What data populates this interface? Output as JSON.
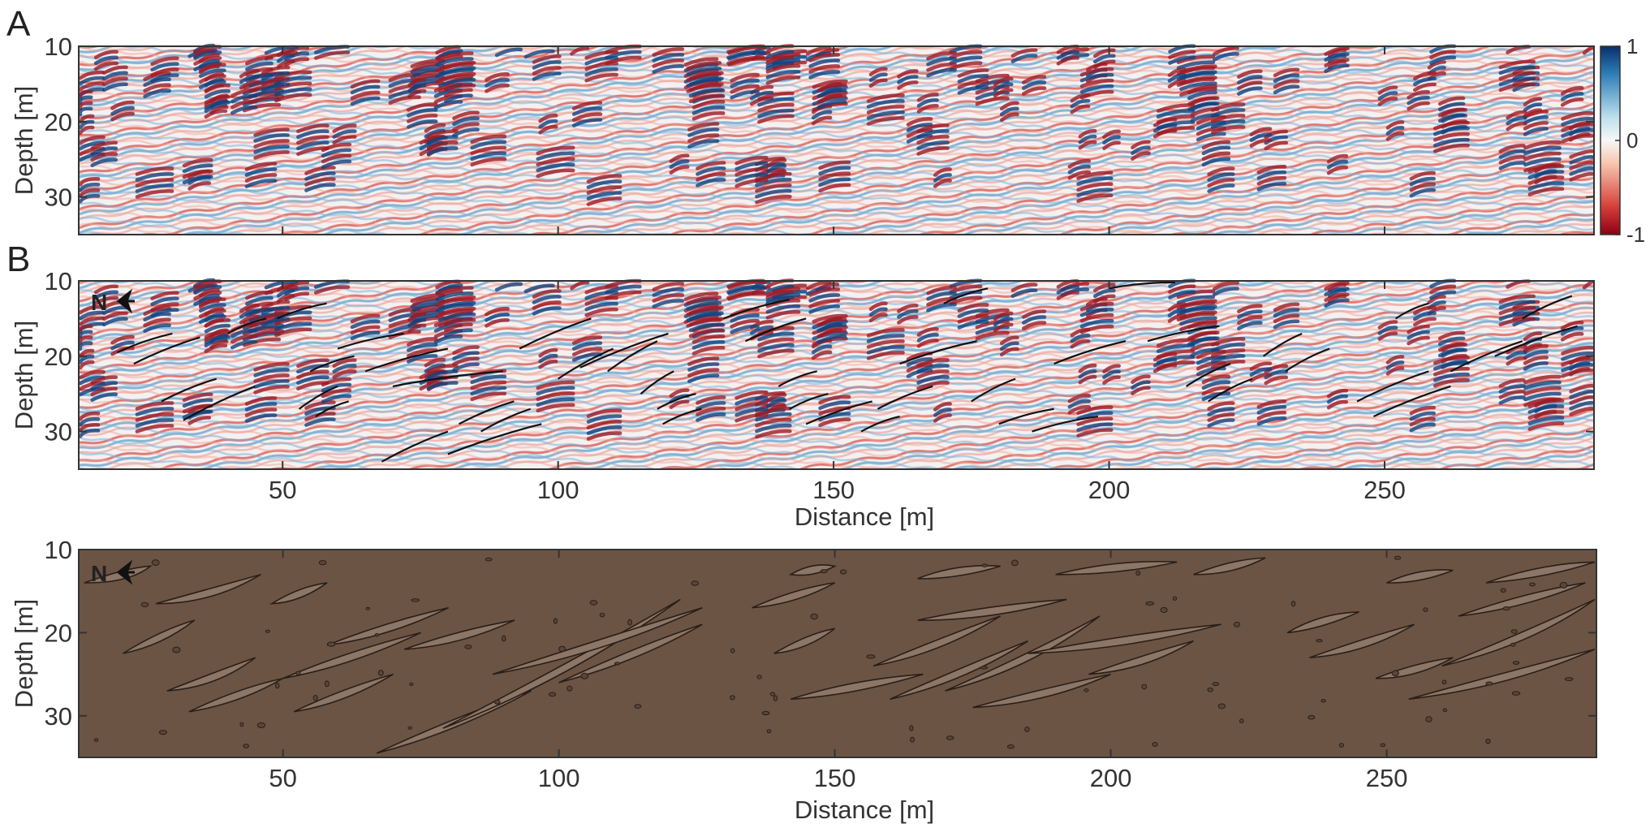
{
  "panels": [
    {
      "id": "A",
      "letter": "A",
      "type": "seismic",
      "ylabel": "Depth [m]",
      "xlabel": "",
      "show_x_ticks": false,
      "north_label": ""
    },
    {
      "id": "B",
      "letter": "B",
      "type": "seismic-interpreted",
      "ylabel": "Depth [m]",
      "xlabel": "Distance [m]",
      "show_x_ticks": true,
      "north_label": "N"
    },
    {
      "id": "C",
      "letter": "",
      "type": "geologic-sketch",
      "ylabel": "Depth [m]",
      "xlabel": "Distance [m]",
      "show_x_ticks": true,
      "north_label": "N"
    }
  ],
  "chart_data": {
    "type": "heatmap",
    "xlim": [
      13,
      288
    ],
    "ylim": [
      35,
      10
    ],
    "x_ticks": [
      50,
      100,
      150,
      200,
      250
    ],
    "y_ticks": [
      10,
      20,
      30
    ],
    "colorbar": {
      "ticks": [
        1,
        0,
        -1
      ],
      "range": [
        -1,
        1
      ],
      "high_color": "#0a3d7a",
      "mid_color": "#f7f7f7",
      "low_color": "#a01020"
    },
    "sketch_colors": {
      "background": "#6b5444",
      "lens": "#8c7667",
      "outline": "#2a1e17"
    },
    "interpreted_reflectors": [
      [
        [
          20,
          19.5
        ],
        [
          30,
          17
        ]
      ],
      [
        [
          23,
          21
        ],
        [
          35,
          17.5
        ]
      ],
      [
        [
          28,
          26
        ],
        [
          38,
          23
        ]
      ],
      [
        [
          32,
          28.5
        ],
        [
          45,
          24
        ]
      ],
      [
        [
          40,
          17
        ],
        [
          47,
          15
        ]
      ],
      [
        [
          49,
          15
        ],
        [
          58,
          13
        ]
      ],
      [
        [
          55,
          22
        ],
        [
          63,
          20
        ]
      ],
      [
        [
          53,
          27
        ],
        [
          60,
          24
        ]
      ],
      [
        [
          56,
          28
        ],
        [
          62,
          26
        ]
      ],
      [
        [
          60,
          19
        ],
        [
          72,
          17
        ]
      ],
      [
        [
          65,
          22
        ],
        [
          80,
          19
        ]
      ],
      [
        [
          70,
          24
        ],
        [
          90,
          22
        ]
      ],
      [
        [
          68,
          34
        ],
        [
          80,
          30
        ]
      ],
      [
        [
          80,
          33
        ],
        [
          97,
          29
        ]
      ],
      [
        [
          82,
          29
        ],
        [
          92,
          26
        ]
      ],
      [
        [
          86,
          30
        ],
        [
          95,
          27
        ]
      ],
      [
        [
          93,
          19
        ],
        [
          106,
          15
        ]
      ],
      [
        [
          100,
          23
        ],
        [
          110,
          19
        ]
      ],
      [
        [
          104,
          21.5
        ],
        [
          120,
          17
        ]
      ],
      [
        [
          109,
          22
        ],
        [
          118,
          18
        ]
      ],
      [
        [
          115,
          25
        ],
        [
          121,
          22
        ]
      ],
      [
        [
          118,
          27
        ],
        [
          125,
          25
        ]
      ],
      [
        [
          119,
          29
        ],
        [
          126,
          27
        ]
      ],
      [
        [
          130,
          15
        ],
        [
          142,
          12.5
        ]
      ],
      [
        [
          134,
          18
        ],
        [
          145,
          15
        ]
      ],
      [
        [
          140,
          24
        ],
        [
          147,
          22
        ]
      ],
      [
        [
          142,
          27
        ],
        [
          149,
          25
        ]
      ],
      [
        [
          145,
          29
        ],
        [
          157,
          26
        ]
      ],
      [
        [
          155,
          30
        ],
        [
          162,
          28
        ]
      ],
      [
        [
          158,
          27
        ],
        [
          168,
          24
        ]
      ],
      [
        [
          162,
          21
        ],
        [
          176,
          18
        ]
      ],
      [
        [
          170,
          13
        ],
        [
          178,
          11
        ]
      ],
      [
        [
          175,
          26
        ],
        [
          183,
          23
        ]
      ],
      [
        [
          180,
          29
        ],
        [
          190,
          27
        ]
      ],
      [
        [
          186,
          30
        ],
        [
          198,
          28
        ]
      ],
      [
        [
          190,
          21
        ],
        [
          203,
          18
        ]
      ],
      [
        [
          200,
          11
        ],
        [
          212,
          10.2
        ]
      ],
      [
        [
          207,
          18
        ],
        [
          220,
          16
        ]
      ],
      [
        [
          214,
          24
        ],
        [
          222,
          21
        ]
      ],
      [
        [
          218,
          26
        ],
        [
          226,
          23
        ]
      ],
      [
        [
          228,
          20
        ],
        [
          235,
          17
        ]
      ],
      [
        [
          232,
          22
        ],
        [
          240,
          19
        ]
      ],
      [
        [
          245,
          26
        ],
        [
          258,
          22
        ]
      ],
      [
        [
          248,
          28
        ],
        [
          262,
          24
        ]
      ],
      [
        [
          252,
          15
        ],
        [
          258,
          13
        ]
      ],
      [
        [
          262,
          22
        ],
        [
          275,
          18
        ]
      ],
      [
        [
          270,
          20
        ],
        [
          285,
          16
        ]
      ],
      [
        [
          275,
          15
        ],
        [
          284,
          12
        ]
      ]
    ],
    "sketch_lenses": [
      [
        [
          14,
          14
        ],
        [
          26,
          12
        ],
        [
          22,
          13.5
        ]
      ],
      [
        [
          21,
          22.5
        ],
        [
          34,
          18.5
        ],
        [
          28,
          21
        ]
      ],
      [
        [
          27,
          16.5
        ],
        [
          46,
          13
        ],
        [
          37,
          16
        ]
      ],
      [
        [
          29,
          27
        ],
        [
          45,
          23
        ],
        [
          38,
          26
        ]
      ],
      [
        [
          33,
          29.5
        ],
        [
          50,
          25.5
        ],
        [
          42,
          28
        ]
      ],
      [
        [
          48,
          16.5
        ],
        [
          58,
          14
        ],
        [
          53,
          15.8
        ]
      ],
      [
        [
          50,
          25.5
        ],
        [
          75,
          20
        ],
        [
          62,
          23.5
        ]
      ],
      [
        [
          52,
          29.5
        ],
        [
          70,
          25
        ],
        [
          61,
          28
        ]
      ],
      [
        [
          58,
          21.5
        ],
        [
          80,
          17
        ],
        [
          69,
          20
        ]
      ],
      [
        [
          67,
          34.5
        ],
        [
          95,
          27
        ],
        [
          81,
          31.5
        ]
      ],
      [
        [
          72,
          22
        ],
        [
          92,
          18.5
        ],
        [
          82,
          21
        ]
      ],
      [
        [
          79,
          31.5
        ],
        [
          122,
          16
        ],
        [
          102,
          25
        ]
      ],
      [
        [
          88,
          25
        ],
        [
          126,
          17
        ],
        [
          108,
          22
        ]
      ],
      [
        [
          100,
          26
        ],
        [
          126,
          19
        ],
        [
          114,
          23
        ]
      ],
      [
        [
          135,
          17
        ],
        [
          150,
          14
        ],
        [
          143,
          16
        ]
      ],
      [
        [
          139,
          22.5
        ],
        [
          150,
          19.5
        ],
        [
          145,
          21.5
        ]
      ],
      [
        [
          142,
          28
        ],
        [
          166,
          25
        ],
        [
          153,
          27
        ]
      ],
      [
        [
          142,
          13
        ],
        [
          150,
          12
        ],
        [
          146,
          12.8
        ]
      ],
      [
        [
          157,
          24
        ],
        [
          180,
          18
        ],
        [
          169,
          22
        ]
      ],
      [
        [
          160,
          28
        ],
        [
          185,
          21
        ],
        [
          173,
          25.5
        ]
      ],
      [
        [
          165,
          18.5
        ],
        [
          192,
          16
        ],
        [
          178,
          18
        ]
      ],
      [
        [
          165,
          13.5
        ],
        [
          180,
          12
        ],
        [
          172,
          13
        ]
      ],
      [
        [
          170,
          27
        ],
        [
          198,
          18
        ],
        [
          185,
          24
        ]
      ],
      [
        [
          175,
          29
        ],
        [
          200,
          25
        ],
        [
          188,
          28
        ]
      ],
      [
        [
          185,
          22.5
        ],
        [
          220,
          19
        ],
        [
          203,
          21.5
        ]
      ],
      [
        [
          190,
          13
        ],
        [
          212,
          11.5
        ],
        [
          201,
          12.5
        ]
      ],
      [
        [
          196,
          25
        ],
        [
          215,
          21
        ],
        [
          206,
          24
        ]
      ],
      [
        [
          215,
          13
        ],
        [
          228,
          11
        ],
        [
          222,
          12.5
        ]
      ],
      [
        [
          232,
          20
        ],
        [
          245,
          17.5
        ],
        [
          238,
          19
        ]
      ],
      [
        [
          236,
          23
        ],
        [
          255,
          19
        ],
        [
          246,
          22
        ]
      ],
      [
        [
          250,
          14
        ],
        [
          262,
          12.5
        ],
        [
          256,
          13.5
        ]
      ],
      [
        [
          254,
          28
        ],
        [
          290,
          22
        ],
        [
          272,
          26
        ]
      ],
      [
        [
          260,
          24
        ],
        [
          290,
          16
        ],
        [
          276,
          21
        ]
      ],
      [
        [
          263,
          18
        ],
        [
          286,
          14
        ],
        [
          275,
          16.5
        ]
      ],
      [
        [
          268,
          14
        ],
        [
          288,
          11.5
        ],
        [
          278,
          13
        ]
      ],
      [
        [
          248,
          25.5
        ],
        [
          262,
          23
        ],
        [
          255,
          25
        ]
      ]
    ]
  }
}
